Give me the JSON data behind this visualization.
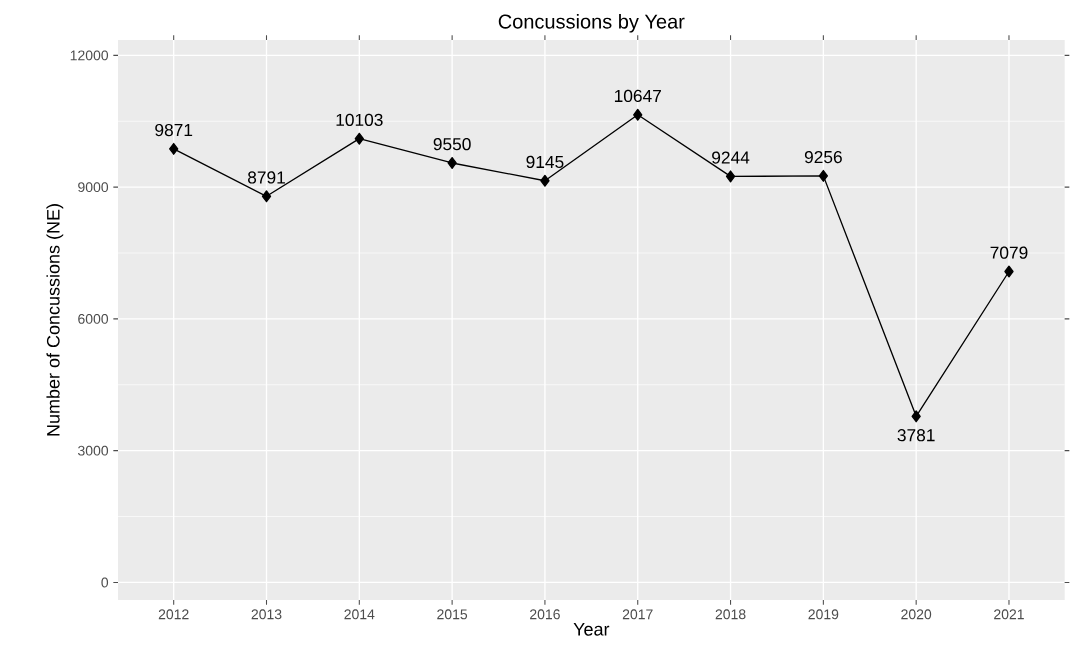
{
  "chart_data": {
    "type": "line",
    "title": "Concussions by Year",
    "xlabel": "Year",
    "ylabel": "Number of Concussions (NE)",
    "categories": [
      "2012",
      "2013",
      "2014",
      "2015",
      "2016",
      "2017",
      "2018",
      "2019",
      "2020",
      "2021"
    ],
    "values": [
      9871,
      8791,
      10103,
      9550,
      9145,
      10647,
      9244,
      9256,
      3781,
      7079
    ],
    "color": "#000000",
    "ylim": [
      -400,
      12350
    ],
    "yticks": [
      0,
      3000,
      6000,
      9000,
      12000
    ],
    "grid": true,
    "marker": "diamond",
    "line_style": "solid",
    "data_labels": true
  }
}
